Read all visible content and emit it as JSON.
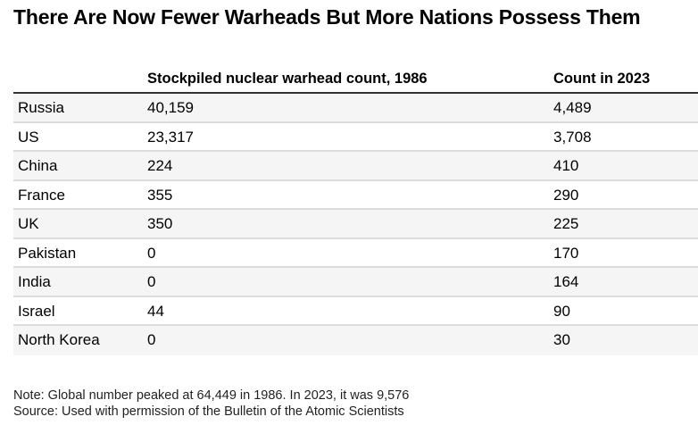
{
  "chart_data": {
    "type": "table",
    "title": "There Are Now Fewer Warheads But More Nations Possess Them",
    "columns": [
      "",
      "Stockpiled nuclear warhead count, 1986",
      "Count in 2023"
    ],
    "rows": [
      {
        "country": "Russia",
        "count_1986": "40,159",
        "count_2023": "4,489"
      },
      {
        "country": "US",
        "count_1986": "23,317",
        "count_2023": "3,708"
      },
      {
        "country": "China",
        "count_1986": "224",
        "count_2023": "410"
      },
      {
        "country": "France",
        "count_1986": "355",
        "count_2023": "290"
      },
      {
        "country": "UK",
        "count_1986": "350",
        "count_2023": "225"
      },
      {
        "country": "Pakistan",
        "count_1986": "0",
        "count_2023": "170"
      },
      {
        "country": "India",
        "count_1986": "0",
        "count_2023": "164"
      },
      {
        "country": "Israel",
        "count_1986": "44",
        "count_2023": "90"
      },
      {
        "country": "North Korea",
        "count_1986": "0",
        "count_2023": "30"
      }
    ],
    "note": "Note: Global number peaked at 64,449 in 1986. In 2023, it was 9,576",
    "source": "Source: Used with permission of the Bulletin of the Atomic Scientists"
  },
  "colors": {
    "alt_row": "#f5f5f5",
    "divider": "#dcdcdc",
    "header_rule": "#333333"
  }
}
